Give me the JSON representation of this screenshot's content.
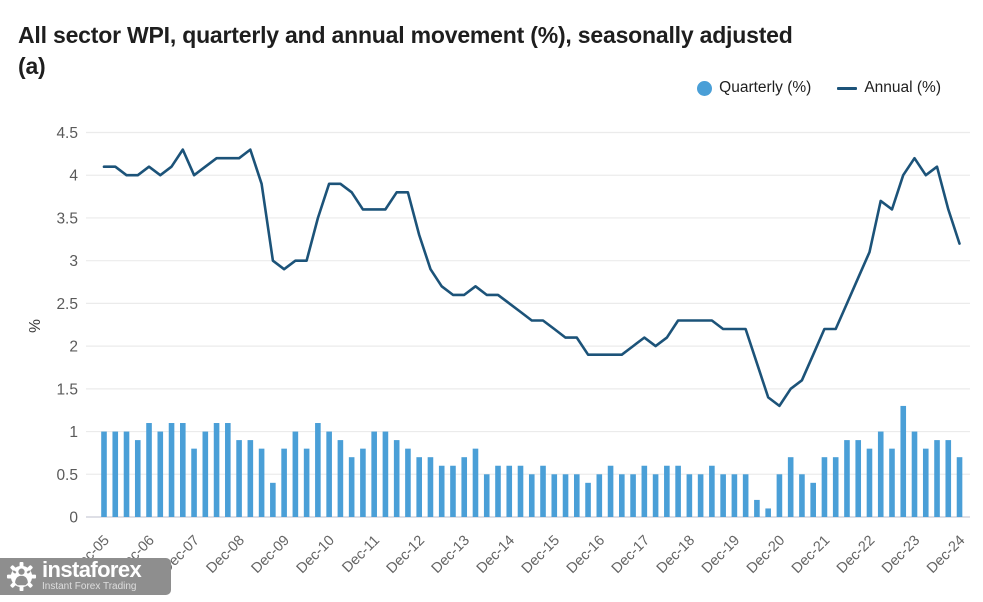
{
  "header": {
    "title_line1": "All sector WPI, quarterly and annual movement (%), seasonally adjusted",
    "title_line2": "(a)"
  },
  "legend": {
    "quarterly_label": "Quarterly (%)",
    "annual_label": "Annual (%)"
  },
  "y_axis": {
    "label": "%",
    "ticks": [
      0,
      0.5,
      1,
      1.5,
      2,
      2.5,
      3,
      3.5,
      4,
      4.5
    ]
  },
  "x_axis": {
    "visible_labels": [
      "Dec-05",
      "Dec-06",
      "Dec-07",
      "Dec-08",
      "Dec-09",
      "Dec-10",
      "Dec-11",
      "Dec-12",
      "Dec-13",
      "Dec-14",
      "Dec-15",
      "Dec-16",
      "Dec-17",
      "Dec-18",
      "Dec-19",
      "Dec-20",
      "Dec-21",
      "Dec-22",
      "Dec-23",
      "Dec-24"
    ]
  },
  "watermark": {
    "brand": "instaforex",
    "tagline": "Instant Forex Trading"
  },
  "colors": {
    "bar": "#4A9FD7",
    "line": "#1C5379",
    "grid": "#ebebeb",
    "baseline": "#c9ccd6",
    "axis_text": "#5a5a5a",
    "x_label_text": "#646464",
    "title_text": "#1e1e1e",
    "watermark_bg": "#8e8e8e"
  },
  "chart_data": {
    "type": "combo",
    "title": "All sector WPI, quarterly and annual movement (%), seasonally adjusted (a)",
    "ylabel": "%",
    "ylim": [
      0,
      4.5
    ],
    "grid": true,
    "legend_position": "top-right",
    "x_tick_every": 4,
    "x": [
      "Dec-05",
      "Mar-06",
      "Jun-06",
      "Sep-06",
      "Dec-06",
      "Mar-07",
      "Jun-07",
      "Sep-07",
      "Dec-07",
      "Mar-08",
      "Jun-08",
      "Sep-08",
      "Dec-08",
      "Mar-09",
      "Jun-09",
      "Sep-09",
      "Dec-09",
      "Mar-10",
      "Jun-10",
      "Sep-10",
      "Dec-10",
      "Mar-11",
      "Jun-11",
      "Sep-11",
      "Dec-11",
      "Mar-12",
      "Jun-12",
      "Sep-12",
      "Dec-12",
      "Mar-13",
      "Jun-13",
      "Sep-13",
      "Dec-13",
      "Mar-14",
      "Jun-14",
      "Sep-14",
      "Dec-14",
      "Mar-15",
      "Jun-15",
      "Sep-15",
      "Dec-15",
      "Mar-16",
      "Jun-16",
      "Sep-16",
      "Dec-16",
      "Mar-17",
      "Jun-17",
      "Sep-17",
      "Dec-17",
      "Mar-18",
      "Jun-18",
      "Sep-18",
      "Dec-18",
      "Mar-19",
      "Jun-19",
      "Sep-19",
      "Dec-19",
      "Mar-20",
      "Jun-20",
      "Sep-20",
      "Dec-20",
      "Mar-21",
      "Jun-21",
      "Sep-21",
      "Dec-21",
      "Mar-22",
      "Jun-22",
      "Sep-22",
      "Dec-22",
      "Mar-23",
      "Jun-23",
      "Sep-23",
      "Dec-23",
      "Mar-24",
      "Jun-24",
      "Sep-24",
      "Dec-24"
    ],
    "series": [
      {
        "name": "Quarterly (%)",
        "type": "bar",
        "values": [
          1.0,
          1.0,
          1.0,
          0.9,
          1.1,
          1.0,
          1.1,
          1.1,
          0.8,
          1.0,
          1.1,
          1.1,
          0.9,
          0.9,
          0.8,
          0.4,
          0.8,
          1.0,
          0.8,
          1.1,
          1.0,
          0.9,
          0.7,
          0.8,
          1.0,
          1.0,
          0.9,
          0.8,
          0.7,
          0.7,
          0.6,
          0.6,
          0.7,
          0.8,
          0.5,
          0.6,
          0.6,
          0.6,
          0.5,
          0.6,
          0.5,
          0.5,
          0.5,
          0.4,
          0.5,
          0.6,
          0.5,
          0.5,
          0.6,
          0.5,
          0.6,
          0.6,
          0.5,
          0.5,
          0.6,
          0.5,
          0.5,
          0.5,
          0.2,
          0.1,
          0.5,
          0.7,
          0.5,
          0.4,
          0.7,
          0.7,
          0.9,
          0.9,
          0.8,
          1.0,
          0.8,
          1.3,
          1.0,
          0.8,
          0.9,
          0.9,
          0.7
        ]
      },
      {
        "name": "Annual (%)",
        "type": "line",
        "values": [
          4.1,
          4.1,
          4.0,
          4.0,
          4.1,
          4.0,
          4.1,
          4.3,
          4.0,
          4.1,
          4.2,
          4.2,
          4.2,
          4.3,
          3.9,
          3.0,
          2.9,
          3.0,
          3.0,
          3.5,
          3.9,
          3.9,
          3.8,
          3.6,
          3.6,
          3.6,
          3.8,
          3.8,
          3.3,
          2.9,
          2.7,
          2.6,
          2.6,
          2.7,
          2.6,
          2.6,
          2.5,
          2.4,
          2.3,
          2.3,
          2.2,
          2.1,
          2.1,
          1.9,
          1.9,
          1.9,
          1.9,
          2.0,
          2.1,
          2.0,
          2.1,
          2.3,
          2.3,
          2.3,
          2.3,
          2.2,
          2.2,
          2.2,
          1.8,
          1.4,
          1.3,
          1.5,
          1.6,
          1.9,
          2.2,
          2.2,
          2.5,
          2.8,
          3.1,
          3.7,
          3.6,
          4.0,
          4.2,
          4.0,
          4.1,
          3.6,
          3.2
        ]
      }
    ]
  }
}
